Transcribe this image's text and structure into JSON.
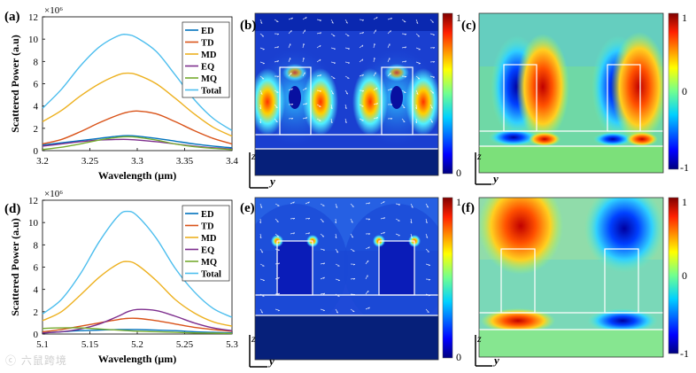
{
  "chart_data": [
    {
      "type": "line",
      "panel": "(a)",
      "title": "",
      "multiplier": "×10⁶",
      "xlabel": "Wavelength (μm)",
      "ylabel": "Scattered Power (a.u)",
      "xlim": [
        3.2,
        3.4
      ],
      "ylim": [
        0,
        12
      ],
      "xticks": [
        "3.2",
        "3.25",
        "3.3",
        "3.35",
        "3.4"
      ],
      "yticks": [
        "0",
        "2",
        "4",
        "6",
        "8",
        "10",
        "12"
      ],
      "legend_position": "top-right",
      "x": [
        3.2,
        3.22,
        3.24,
        3.26,
        3.28,
        3.29,
        3.3,
        3.32,
        3.34,
        3.36,
        3.38,
        3.4
      ],
      "series": [
        {
          "name": "ED",
          "color": "#0072BD",
          "values": [
            0.5,
            0.7,
            0.9,
            1.1,
            1.3,
            1.35,
            1.3,
            1.1,
            0.85,
            0.6,
            0.4,
            0.25
          ]
        },
        {
          "name": "TD",
          "color": "#D95319",
          "values": [
            0.6,
            1.0,
            1.7,
            2.5,
            3.2,
            3.45,
            3.55,
            3.3,
            2.6,
            1.8,
            1.1,
            0.6
          ]
        },
        {
          "name": "MD",
          "color": "#EDB120",
          "values": [
            2.6,
            3.6,
            4.9,
            6.0,
            6.8,
            6.95,
            6.8,
            6.0,
            4.7,
            3.3,
            2.1,
            1.3
          ]
        },
        {
          "name": "EQ",
          "color": "#7E2F8E",
          "values": [
            0.4,
            0.6,
            0.8,
            0.95,
            1.0,
            1.0,
            0.95,
            0.8,
            0.6,
            0.4,
            0.25,
            0.15
          ]
        },
        {
          "name": "MQ",
          "color": "#77AC30",
          "values": [
            0.1,
            0.3,
            0.6,
            0.95,
            1.2,
            1.25,
            1.2,
            0.95,
            0.6,
            0.35,
            0.2,
            0.1
          ]
        },
        {
          "name": "Total",
          "color": "#4DBEEE",
          "values": [
            3.8,
            5.5,
            7.6,
            9.3,
            10.3,
            10.4,
            10.1,
            8.9,
            6.8,
            4.6,
            2.9,
            1.8
          ]
        }
      ]
    },
    {
      "type": "line",
      "panel": "(d)",
      "title": "",
      "multiplier": "×10⁶",
      "xlabel": "Wavelength (μm)",
      "ylabel": "Scattered Power (a.u)",
      "xlim": [
        5.1,
        5.3
      ],
      "ylim": [
        0,
        12
      ],
      "xticks": [
        "5.1",
        "5.15",
        "5.2",
        "5.25",
        "5.3"
      ],
      "yticks": [
        "0",
        "2",
        "4",
        "6",
        "8",
        "10",
        "12"
      ],
      "legend_position": "top-right",
      "x": [
        5.1,
        5.12,
        5.14,
        5.16,
        5.18,
        5.19,
        5.2,
        5.22,
        5.24,
        5.26,
        5.28,
        5.3
      ],
      "series": [
        {
          "name": "ED",
          "color": "#0072BD",
          "values": [
            0.1,
            0.2,
            0.3,
            0.35,
            0.4,
            0.4,
            0.4,
            0.35,
            0.3,
            0.2,
            0.15,
            0.1
          ]
        },
        {
          "name": "TD",
          "color": "#D95319",
          "values": [
            0.2,
            0.4,
            0.7,
            1.0,
            1.3,
            1.4,
            1.4,
            1.2,
            0.9,
            0.6,
            0.4,
            0.25
          ]
        },
        {
          "name": "MD",
          "color": "#EDB120",
          "values": [
            1.2,
            2.0,
            3.5,
            5.1,
            6.3,
            6.5,
            6.2,
            4.8,
            3.1,
            1.9,
            1.1,
            0.7
          ]
        },
        {
          "name": "EQ",
          "color": "#7E2F8E",
          "values": [
            0.1,
            0.2,
            0.45,
            0.9,
            1.6,
            2.0,
            2.2,
            2.1,
            1.6,
            1.0,
            0.55,
            0.3
          ]
        },
        {
          "name": "MQ",
          "color": "#77AC30",
          "values": [
            0.5,
            0.55,
            0.55,
            0.45,
            0.35,
            0.3,
            0.25,
            0.2,
            0.15,
            0.1,
            0.08,
            0.05
          ]
        },
        {
          "name": "Total",
          "color": "#4DBEEE",
          "values": [
            1.8,
            3.1,
            5.4,
            8.3,
            10.6,
            11.0,
            10.6,
            8.6,
            5.9,
            3.8,
            2.3,
            1.5
          ]
        }
      ]
    }
  ],
  "field_panels": {
    "b": {
      "label": "(b)",
      "scale_top": "1",
      "scale_bottom": "0"
    },
    "c": {
      "label": "(c)",
      "scale_top": "1",
      "scale_mid": "0",
      "scale_bottom": "-1"
    },
    "e": {
      "label": "(e)",
      "scale_top": "1",
      "scale_bottom": "0"
    },
    "f": {
      "label": "(f)",
      "scale_top": "1",
      "scale_mid": "0",
      "scale_bottom": "-1"
    },
    "axis_z": "z",
    "axis_y": "y"
  },
  "colors": {
    "field_background": "#1a3fd0",
    "substrate": "#06207a",
    "phase_background": "#6fd8a6"
  }
}
